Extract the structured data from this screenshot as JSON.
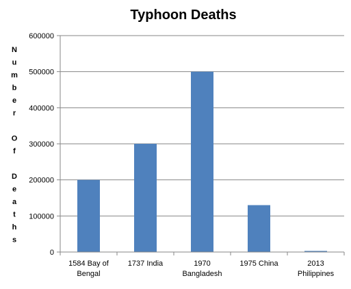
{
  "chart_data": {
    "type": "bar",
    "title": "Typhoon Deaths",
    "xlabel": "",
    "ylabel": "Number Of Deaths",
    "categories": [
      [
        "1584 Bay of",
        "Bengal"
      ],
      [
        "1737 India"
      ],
      [
        "1970",
        "Bangladesh"
      ],
      [
        "1975 China"
      ],
      [
        "2013",
        "Philippines"
      ]
    ],
    "values": [
      200000,
      300000,
      500000,
      130000,
      3000
    ],
    "ylim": [
      0,
      600000
    ],
    "yticks": [
      0,
      100000,
      200000,
      300000,
      400000,
      500000,
      600000
    ],
    "grid": true,
    "legend": "none",
    "colors": {
      "bar": "#4f81bd",
      "grid": "#868686",
      "axis": "#868686"
    }
  }
}
